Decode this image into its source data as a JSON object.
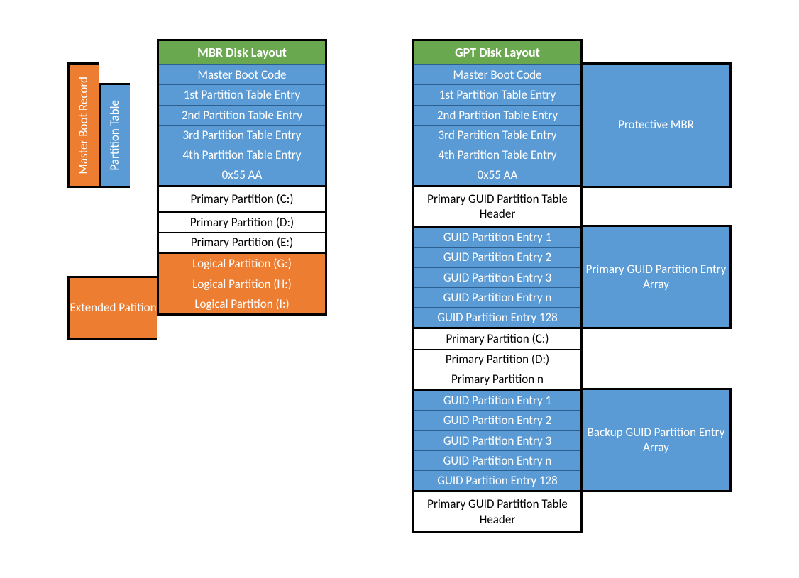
{
  "colors": {
    "green": "#6aa84f",
    "blue": "#5b9bd5",
    "orange": "#ed7d31",
    "white": "#ffffff",
    "black": "#000000",
    "blue_border": "#2b5f8f",
    "orange_border": "#a94e13"
  },
  "typography": {
    "font_family": "Calibri, Arial, sans-serif",
    "header_fontsize": 18,
    "cell_fontsize": 17
  },
  "mbr": {
    "title": "MBR Disk Layout",
    "side_labels": {
      "master_boot_record": "Master Boot Record",
      "partition_table": "Partition Table",
      "extended_partition": "Extended Patition"
    },
    "rows": [
      {
        "text": "Master Boot Code",
        "style": "blue"
      },
      {
        "text": "1st Partition Table Entry",
        "style": "blue"
      },
      {
        "text": "2nd Partition Table Entry",
        "style": "blue"
      },
      {
        "text": "3rd Partition Table Entry",
        "style": "blue"
      },
      {
        "text": "4th Partition Table Entry",
        "style": "blue"
      },
      {
        "text": "0x55 AA",
        "style": "blue"
      },
      {
        "text": "Primary Partition (C:)",
        "style": "white",
        "hsep": true,
        "tall": true
      },
      {
        "text": "Primary Partition (D:)",
        "style": "white",
        "hsep": true
      },
      {
        "text": "Primary Partition (E:)",
        "style": "white"
      },
      {
        "text": "Logical Partition (G:)",
        "style": "orange",
        "hsep": true
      },
      {
        "text": "Logical Partition (H:)",
        "style": "orange"
      },
      {
        "text": "Logical Partition (I:)",
        "style": "orange"
      }
    ]
  },
  "gpt": {
    "title": "GPT Disk Layout",
    "side_labels": {
      "protective_mbr": "Protective MBR",
      "primary_array": "Primary GUID Partition Entry Array",
      "backup_array": "Backup GUID Partition Entry Array"
    },
    "rows": [
      {
        "text": "Master Boot Code",
        "style": "blue"
      },
      {
        "text": "1st Partition Table Entry",
        "style": "blue"
      },
      {
        "text": "2nd Partition Table Entry",
        "style": "blue"
      },
      {
        "text": "3rd Partition Table Entry",
        "style": "blue"
      },
      {
        "text": "4th Partition Table Entry",
        "style": "blue"
      },
      {
        "text": "0x55 AA",
        "style": "blue"
      },
      {
        "text": "Primary GUID Partition Table Header",
        "style": "white",
        "hsep": true,
        "tall": true
      },
      {
        "text": "GUID Partition Entry 1",
        "style": "blue",
        "hsep": true
      },
      {
        "text": "GUID Partition Entry 2",
        "style": "blue"
      },
      {
        "text": "GUID Partition Entry 3",
        "style": "blue"
      },
      {
        "text": "GUID Partition Entry n",
        "style": "blue"
      },
      {
        "text": "GUID Partition Entry 128",
        "style": "blue"
      },
      {
        "text": "Primary Partition (C:)",
        "style": "white",
        "hsep": true
      },
      {
        "text": "Primary Partition (D:)",
        "style": "white"
      },
      {
        "text": "Primary Partition n",
        "style": "white"
      },
      {
        "text": "GUID Partition Entry 1",
        "style": "blue",
        "hsep": true
      },
      {
        "text": "GUID Partition Entry 2",
        "style": "blue"
      },
      {
        "text": "GUID Partition Entry 3",
        "style": "blue"
      },
      {
        "text": "GUID Partition Entry n",
        "style": "blue"
      },
      {
        "text": "GUID Partition Entry 128",
        "style": "blue"
      },
      {
        "text": "Primary GUID Partition Table Header",
        "style": "white",
        "hsep": true,
        "tall": true
      }
    ]
  }
}
